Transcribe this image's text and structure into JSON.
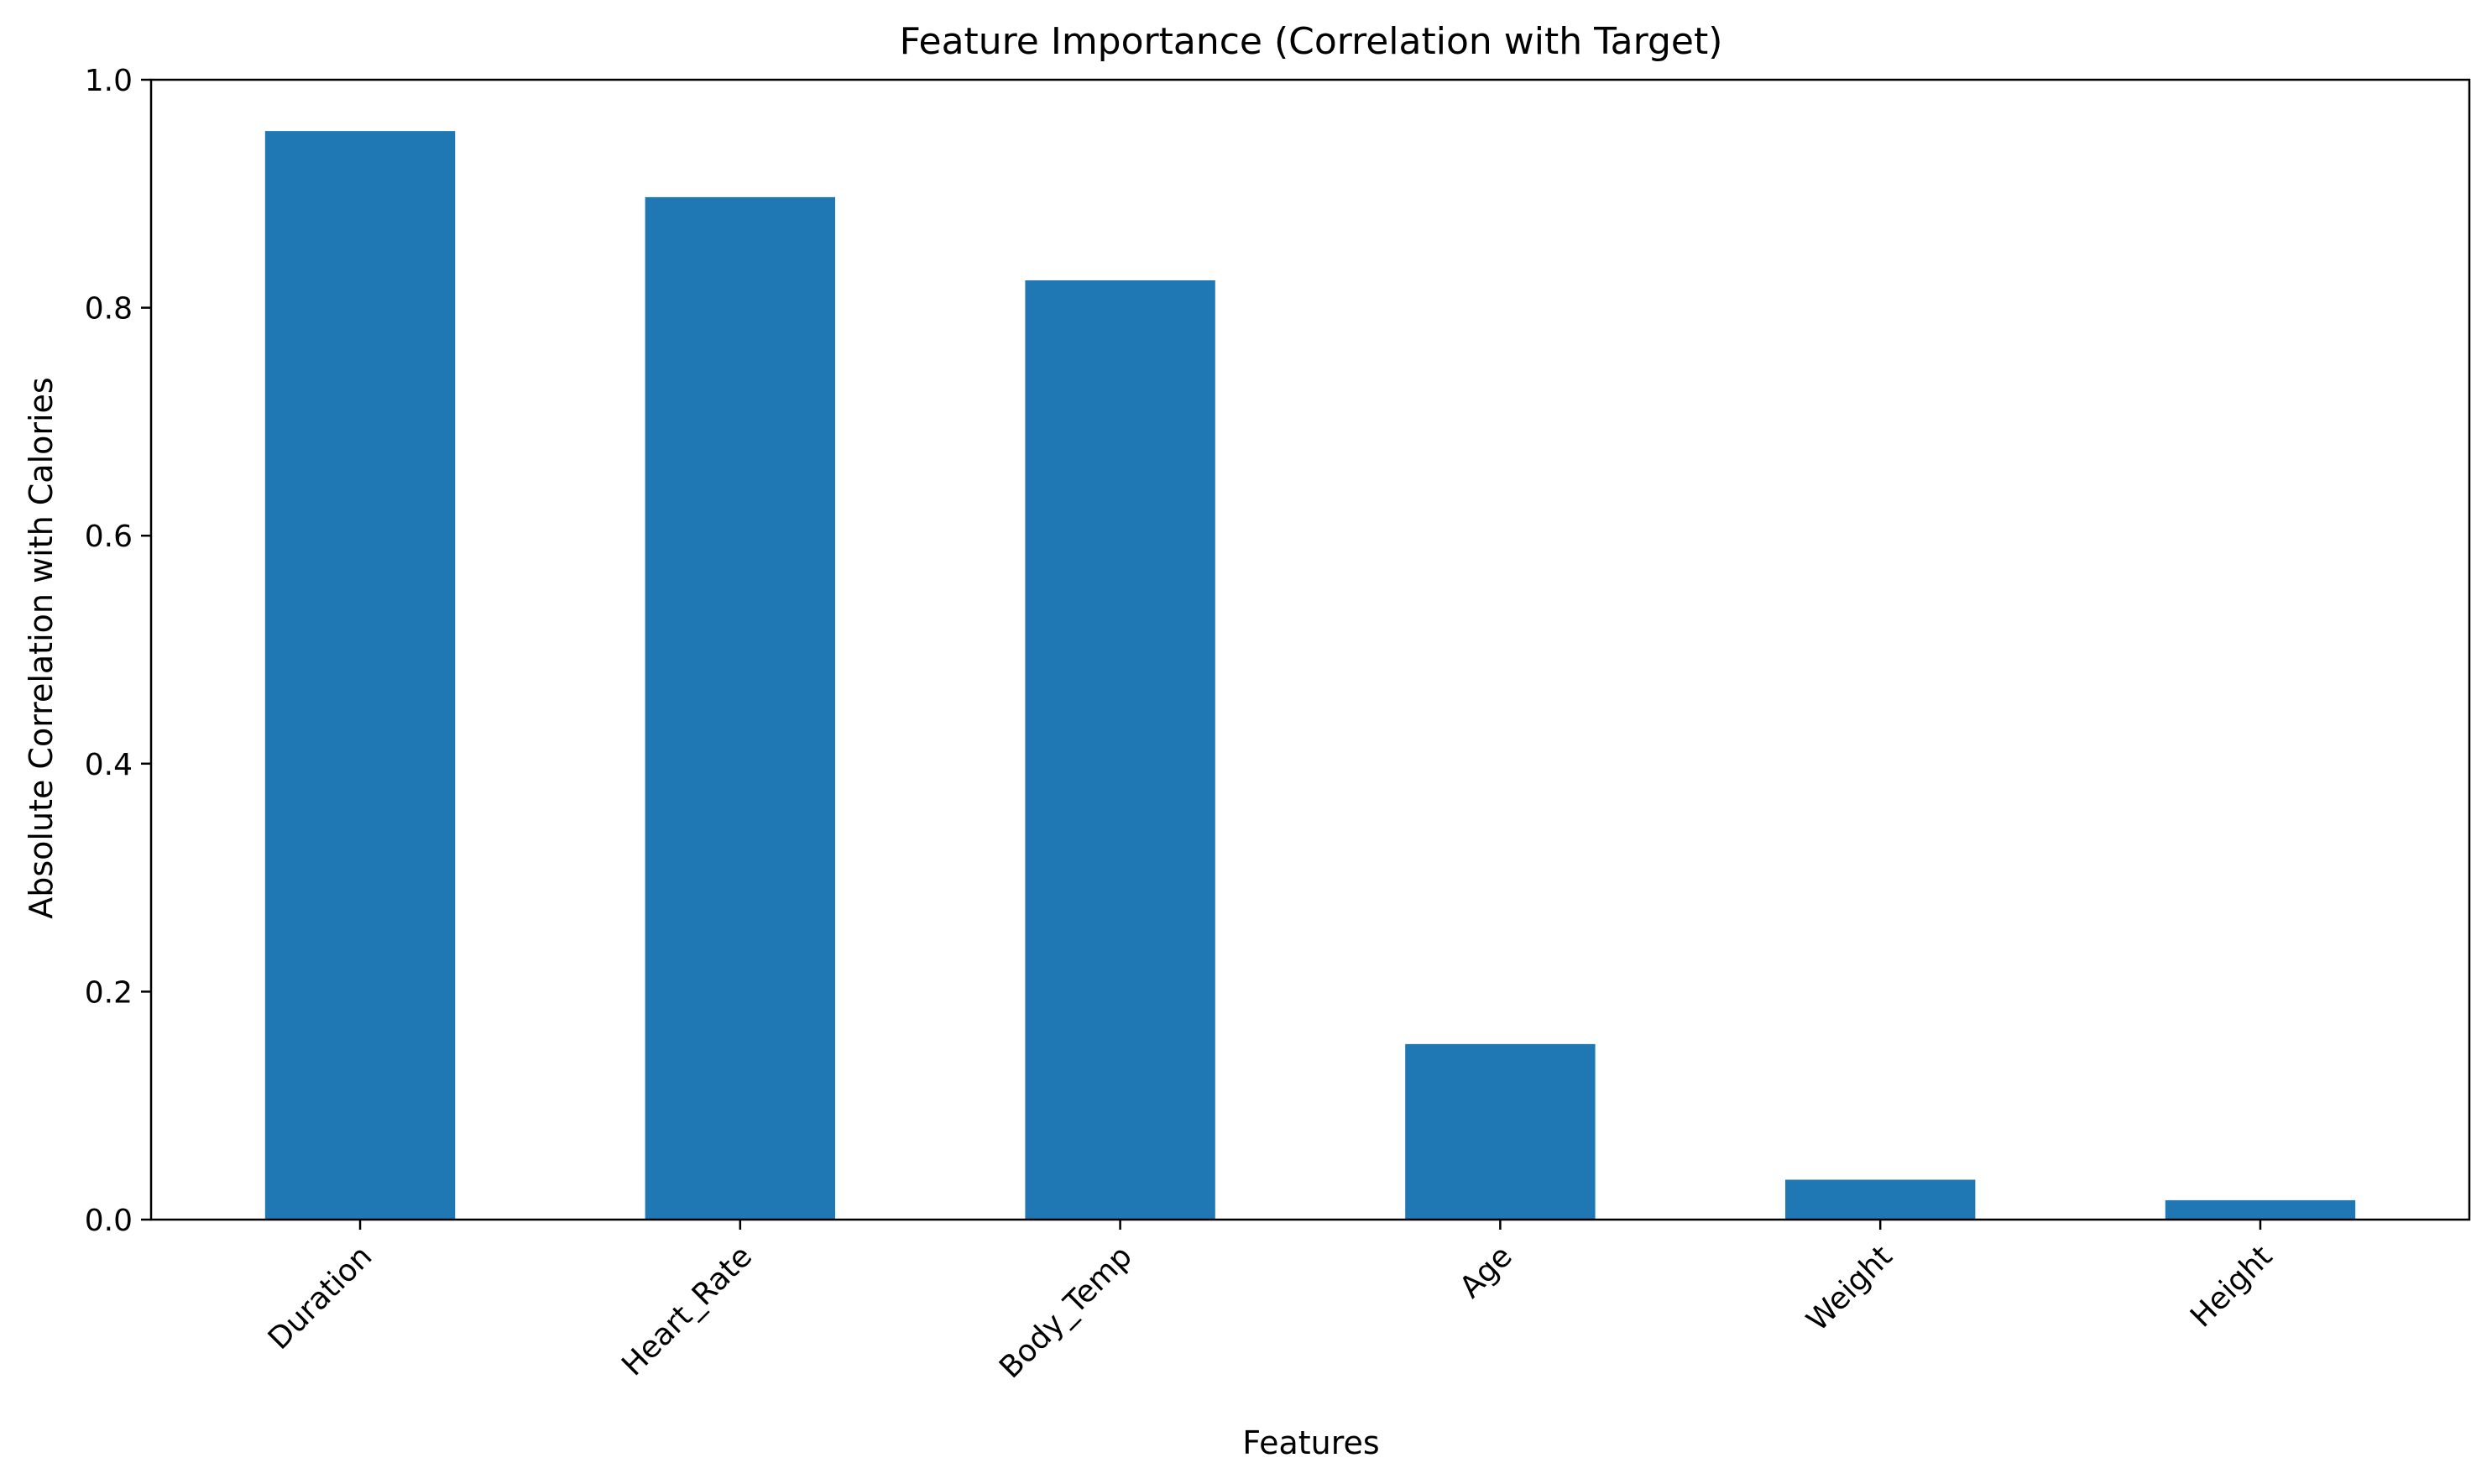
{
  "chart_data": {
    "type": "bar",
    "title": "Feature Importance (Correlation with Target)",
    "xlabel": "Features",
    "ylabel": "Absolute Correlation with Calories",
    "categories": [
      "Duration",
      "Heart_Rate",
      "Body_Temp",
      "Age",
      "Weight",
      "Height"
    ],
    "values": [
      0.955,
      0.897,
      0.824,
      0.154,
      0.035,
      0.017
    ],
    "ylim": [
      0.0,
      1.0
    ],
    "yticks": [
      "0.0",
      "0.2",
      "0.4",
      "0.6",
      "0.8",
      "1.0"
    ],
    "grid": false,
    "legend": "none",
    "colors": {
      "bar": "#1f77b4",
      "axis": "#000000"
    }
  }
}
